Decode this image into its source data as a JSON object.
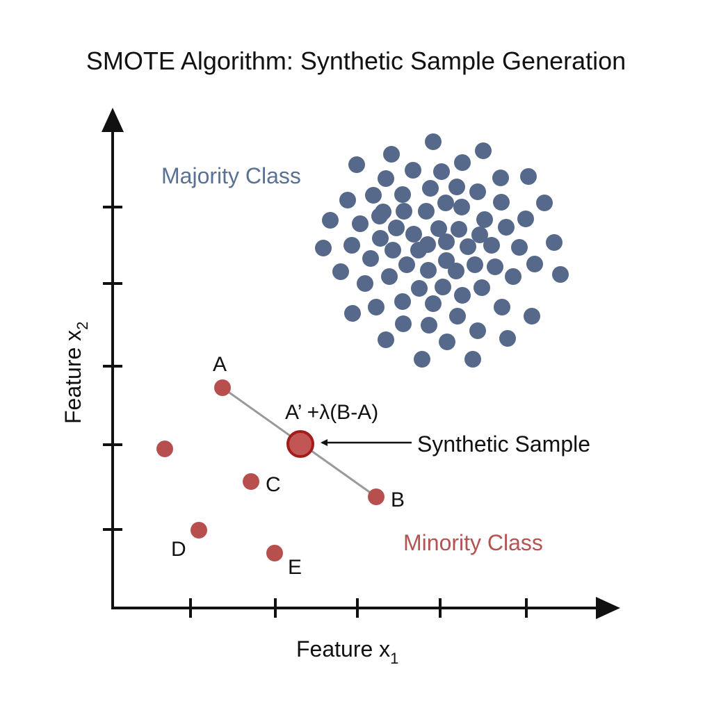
{
  "title": "SMOTE Algorithm: Synthetic Sample Generation",
  "axes": {
    "x": {
      "label": "Feature x",
      "subscript": "1"
    },
    "y": {
      "label": "Feature x",
      "subscript": "2"
    }
  },
  "classes": {
    "majority": "Majority Class",
    "minority": "Minority Class"
  },
  "points": {
    "a": "A",
    "b": "B",
    "c": "C",
    "d": "D",
    "e": "E"
  },
  "synthetic": {
    "formula": "A’ +λ(B-A)",
    "label": "Synthetic Sample"
  }
}
